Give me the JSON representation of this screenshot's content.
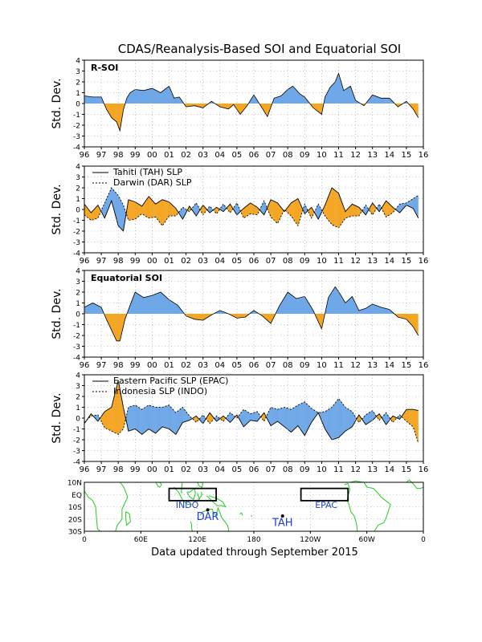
{
  "title": "CDAS/Reanalysis-Based SOI and Equatorial SOI",
  "footer": "Data updated through September 2015",
  "colors": {
    "positive_fill": "#6fa8e8",
    "negative_fill": "#f5a623",
    "land": "#22cc22",
    "map_label": "#1f3fd6",
    "grid": "#999999"
  },
  "x_tick_labels": [
    "96",
    "97",
    "98",
    "99",
    "00",
    "01",
    "02",
    "03",
    "04",
    "05",
    "06",
    "07",
    "08",
    "09",
    "10",
    "11",
    "12",
    "13",
    "14",
    "15",
    "16"
  ],
  "y_ticks": [
    4,
    3,
    2,
    1,
    0,
    -1,
    -2,
    -3,
    -4
  ],
  "chart_data": [
    {
      "type": "area",
      "panel": "R-SOI",
      "panel_label": "R-SOI",
      "ylabel": "Std. Dev.",
      "ylim": [
        -4,
        4
      ],
      "xlim": [
        1996,
        2016
      ],
      "grid": true,
      "series": [
        {
          "x": [
            1996,
            1996.5,
            1997,
            1997.3,
            1997.6,
            1997.9,
            1998.1,
            1998.3,
            1998.5,
            1998.7,
            1999,
            1999.5,
            2000,
            2000.5,
            2001,
            2001.3,
            2001.6,
            2002,
            2002.5,
            2003,
            2003.5,
            2004,
            2004.5,
            2004.8,
            2005.2,
            2005.6,
            2006,
            2006.4,
            2006.8,
            2007.2,
            2007.6,
            2008,
            2008.3,
            2008.7,
            2009,
            2009.5,
            2010,
            2010.2,
            2010.5,
            2010.8,
            2011,
            2011.3,
            2011.7,
            2012,
            2012.5,
            2013,
            2013.5,
            2014,
            2014.5,
            2015,
            2015.4,
            2015.7
          ],
          "y": [
            0.7,
            0.6,
            0.6,
            -0.5,
            -1.3,
            -1.7,
            -2.5,
            -0.6,
            0.5,
            1.0,
            1.3,
            1.2,
            1.4,
            1.0,
            1.6,
            0.5,
            0.6,
            -0.3,
            -0.2,
            -0.4,
            0.2,
            -0.3,
            -0.5,
            -0.1,
            -1.0,
            -0.2,
            0.8,
            -0.2,
            -1.2,
            0.5,
            0.7,
            1.3,
            1.6,
            0.9,
            0.6,
            -0.4,
            -1.0,
            0.6,
            1.5,
            2.0,
            2.8,
            1.2,
            1.6,
            0.3,
            -0.2,
            0.8,
            0.5,
            0.5,
            -0.3,
            0.2,
            -0.5,
            -1.3
          ]
        }
      ]
    },
    {
      "type": "line",
      "panel": "Tahiti/Darwin",
      "ylabel": "Std. Dev.",
      "ylim": [
        -4,
        4
      ],
      "xlim": [
        1996,
        2016
      ],
      "grid": true,
      "legend": [
        "Tahiti (TAH) SLP",
        "Darwin (DAR) SLP"
      ],
      "series": [
        {
          "name": "Tahiti (TAH) SLP",
          "x": [
            1996,
            1996.4,
            1996.8,
            1997.2,
            1997.6,
            1998,
            1998.3,
            1998.6,
            1999,
            1999.4,
            1999.8,
            2000.2,
            2000.6,
            2001,
            2001.4,
            2001.8,
            2002.2,
            2002.6,
            2003,
            2003.4,
            2003.8,
            2004.2,
            2004.6,
            2005,
            2005.4,
            2005.8,
            2006.2,
            2006.6,
            2007,
            2007.4,
            2007.8,
            2008.2,
            2008.6,
            2009,
            2009.4,
            2009.8,
            2010.2,
            2010.6,
            2011,
            2011.4,
            2011.8,
            2012.2,
            2012.6,
            2013,
            2013.4,
            2013.8,
            2014.2,
            2014.6,
            2015,
            2015.4,
            2015.7
          ],
          "y": [
            0.5,
            -0.3,
            0.4,
            -0.8,
            0.8,
            -1.5,
            -2.0,
            0.9,
            0.7,
            0.3,
            1.2,
            0.5,
            0.9,
            0.7,
            0.1,
            -0.9,
            0.3,
            -0.6,
            0.4,
            -0.3,
            0.2,
            -0.2,
            0.5,
            -0.5,
            0.1,
            0.6,
            0.2,
            -0.5,
            0.9,
            0.6,
            -0.2,
            0.6,
            1.0,
            -0.4,
            0.2,
            -0.9,
            0.4,
            2.0,
            1.5,
            -0.2,
            0.5,
            0.2,
            -0.5,
            0.6,
            -0.2,
            0.8,
            0.2,
            -0.3,
            0.4,
            0.1,
            -0.8
          ]
        },
        {
          "name": "Darwin (DAR) SLP",
          "x": [
            1996,
            1996.4,
            1996.8,
            1997.2,
            1997.6,
            1998,
            1998.3,
            1998.6,
            1999,
            1999.4,
            1999.8,
            2000.2,
            2000.6,
            2001,
            2001.4,
            2001.8,
            2002.2,
            2002.6,
            2003,
            2003.4,
            2003.8,
            2004.2,
            2004.6,
            2005,
            2005.4,
            2005.8,
            2006.2,
            2006.6,
            2007,
            2007.4,
            2007.8,
            2008.2,
            2008.6,
            2009,
            2009.4,
            2009.8,
            2010.2,
            2010.6,
            2011,
            2011.4,
            2011.8,
            2012.2,
            2012.6,
            2013,
            2013.4,
            2013.8,
            2014.2,
            2014.6,
            2015,
            2015.4,
            2015.7
          ],
          "y": [
            -0.5,
            -1.0,
            -0.8,
            0.6,
            2.0,
            1.3,
            0.4,
            -1.0,
            -0.9,
            -0.4,
            -0.8,
            -0.7,
            -1.5,
            -0.6,
            -0.6,
            0.2,
            -0.2,
            0.6,
            -0.5,
            0.3,
            -0.4,
            0.5,
            -0.3,
            0.6,
            -0.8,
            -0.4,
            -0.5,
            0.8,
            -0.7,
            -1.3,
            0.0,
            -0.6,
            -1.5,
            0.5,
            -0.8,
            0.5,
            -0.6,
            -1.4,
            -1.7,
            -0.8,
            -0.6,
            -0.6,
            0.4,
            -0.5,
            0.5,
            -0.7,
            -0.3,
            0.5,
            0.6,
            1.0,
            1.3
          ]
        }
      ]
    },
    {
      "type": "area",
      "panel": "Equatorial SOI",
      "panel_label": "Equatorial SOI",
      "ylabel": "Std. Dev.",
      "ylim": [
        -4,
        4
      ],
      "xlim": [
        1996,
        2016
      ],
      "grid": true,
      "series": [
        {
          "x": [
            1996,
            1996.5,
            1997,
            1997.3,
            1997.6,
            1997.9,
            1998.1,
            1998.4,
            1998.7,
            1999,
            1999.5,
            2000,
            2000.5,
            2001,
            2001.5,
            2002,
            2002.5,
            2003,
            2003.5,
            2004,
            2004.5,
            2005,
            2005.5,
            2006,
            2006.5,
            2007,
            2007.5,
            2008,
            2008.5,
            2009,
            2009.5,
            2010,
            2010.4,
            2010.8,
            2011.1,
            2011.4,
            2011.8,
            2012.2,
            2012.6,
            2013,
            2013.5,
            2014,
            2014.5,
            2015,
            2015.4,
            2015.7
          ],
          "y": [
            0.6,
            1.0,
            0.6,
            -0.5,
            -1.5,
            -2.5,
            -2.5,
            -0.5,
            0.8,
            2.0,
            1.5,
            1.7,
            2.0,
            1.3,
            0.8,
            -0.2,
            -0.5,
            -0.6,
            -0.1,
            0.3,
            0.0,
            -0.4,
            -0.3,
            0.3,
            -0.2,
            -0.9,
            0.7,
            2.0,
            1.4,
            1.6,
            0.3,
            -1.4,
            1.5,
            2.5,
            1.8,
            1.0,
            1.6,
            0.3,
            0.5,
            0.9,
            0.6,
            0.4,
            -0.3,
            -0.5,
            -1.2,
            -2.0
          ]
        }
      ]
    },
    {
      "type": "line",
      "panel": "EPAC/INDO",
      "ylabel": "Std. Dev.",
      "ylim": [
        -4,
        4
      ],
      "xlim": [
        1996,
        2016
      ],
      "grid": true,
      "legend": [
        "Eastern Pacific SLP (EPAC)",
        "Indonesia SLP (INDO)"
      ],
      "series": [
        {
          "name": "Eastern Pacific SLP (EPAC)",
          "x": [
            1996,
            1996.4,
            1996.8,
            1997.2,
            1997.6,
            1998,
            1998.3,
            1998.6,
            1999,
            1999.4,
            1999.8,
            2000.2,
            2000.6,
            2001,
            2001.4,
            2001.8,
            2002.2,
            2002.6,
            2003,
            2003.4,
            2003.8,
            2004.2,
            2004.6,
            2005,
            2005.4,
            2005.8,
            2006.2,
            2006.6,
            2007,
            2007.4,
            2007.8,
            2008.2,
            2008.6,
            2009,
            2009.4,
            2009.8,
            2010.2,
            2010.6,
            2011,
            2011.4,
            2011.8,
            2012.2,
            2012.6,
            2013,
            2013.4,
            2013.8,
            2014.2,
            2014.6,
            2015,
            2015.4,
            2015.7
          ],
          "y": [
            -0.5,
            0.4,
            -0.3,
            0.6,
            1.0,
            3.5,
            1.0,
            -1.2,
            -1.0,
            -1.5,
            -1.0,
            -1.4,
            -0.8,
            -1.0,
            -1.5,
            -0.4,
            -0.2,
            0.2,
            -0.5,
            0.5,
            -0.3,
            0.2,
            -0.4,
            0.3,
            -0.8,
            -0.2,
            -0.3,
            0.5,
            -0.7,
            -0.3,
            -0.8,
            -1.3,
            -0.7,
            -1.6,
            -0.4,
            0.5,
            -1.0,
            -2.0,
            -1.8,
            -1.2,
            -0.8,
            0.3,
            -0.6,
            -0.2,
            0.4,
            -0.6,
            0.2,
            -0.1,
            0.8,
            0.8,
            0.7
          ]
        },
        {
          "name": "Indonesia SLP (INDO)",
          "x": [
            1996,
            1996.4,
            1996.8,
            1997.2,
            1997.6,
            1998,
            1998.3,
            1998.6,
            1999,
            1999.4,
            1999.8,
            2000.2,
            2000.6,
            2001,
            2001.4,
            2001.8,
            2002.2,
            2002.6,
            2003,
            2003.4,
            2003.8,
            2004.2,
            2004.6,
            2005,
            2005.4,
            2005.8,
            2006.2,
            2006.6,
            2007,
            2007.4,
            2007.8,
            2008.2,
            2008.6,
            2009,
            2009.4,
            2009.8,
            2010.2,
            2010.6,
            2011,
            2011.4,
            2011.8,
            2012.2,
            2012.6,
            2013,
            2013.4,
            2013.8,
            2014.2,
            2014.6,
            2015,
            2015.4,
            2015.7
          ],
          "y": [
            -0.4,
            0.2,
            0.3,
            -0.9,
            -1.2,
            -1.5,
            -1.0,
            1.0,
            1.2,
            0.8,
            1.2,
            1.0,
            1.0,
            1.2,
            0.5,
            1.0,
            0.2,
            -0.4,
            0.3,
            -0.5,
            0.2,
            -0.3,
            0.5,
            0.0,
            0.8,
            0.4,
            0.6,
            -0.3,
            1.0,
            0.8,
            1.0,
            0.8,
            1.2,
            1.5,
            0.9,
            0.5,
            0.6,
            1.0,
            1.8,
            1.0,
            0.6,
            -0.4,
            0.3,
            0.7,
            -0.2,
            0.5,
            -0.4,
            0.3,
            -0.3,
            -0.8,
            -2.3
          ]
        }
      ]
    }
  ],
  "map": {
    "lat_labels": [
      "10N",
      "EQ",
      "10S",
      "20S",
      "30S"
    ],
    "lon_labels": [
      "0",
      "60E",
      "120E",
      "180",
      "120W",
      "60W",
      "0"
    ],
    "boxes": [
      {
        "label": "INDO"
      },
      {
        "label": "EPAC"
      }
    ],
    "stations": [
      {
        "label": "DAR"
      },
      {
        "label": "TAH"
      }
    ]
  }
}
